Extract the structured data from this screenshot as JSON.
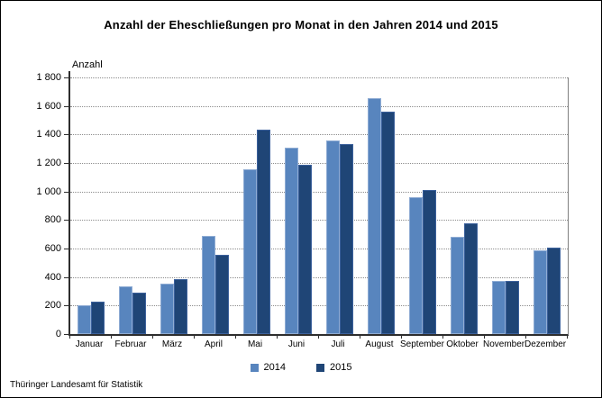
{
  "source_label": "Thüringer Landesamt für Statistik",
  "colors": {
    "series_2014": "#5885BE",
    "series_2014_border": "#8FACD4",
    "series_2015": "#1F4576",
    "series_2015_border": "#3C619C",
    "gridline": "#8c8c8c",
    "axis": "#2e2e2e"
  },
  "chart_data": {
    "type": "bar",
    "title": "Anzahl der Eheschließungen pro Monat in den Jahren 2014 und 2015",
    "ylabel": "Anzahl",
    "xlabel": "",
    "ylim": [
      0,
      1800
    ],
    "ytick_step": 200,
    "grid": "horizontal-dotted",
    "legend_position": "bottom-center",
    "categories": [
      "Januar",
      "Februar",
      "März",
      "April",
      "Mai",
      "Juni",
      "Juli",
      "August",
      "September",
      "Oktober",
      "November",
      "Dezember"
    ],
    "series": [
      {
        "name": "2014",
        "color": "#5885BE",
        "values": [
          205,
          335,
          355,
          690,
          1155,
          1310,
          1360,
          1655,
          960,
          685,
          375,
          590
        ]
      },
      {
        "name": "2015",
        "color": "#1F4576",
        "values": [
          230,
          290,
          385,
          555,
          1435,
          1190,
          1330,
          1560,
          1010,
          775,
          375,
          605
        ]
      }
    ]
  }
}
